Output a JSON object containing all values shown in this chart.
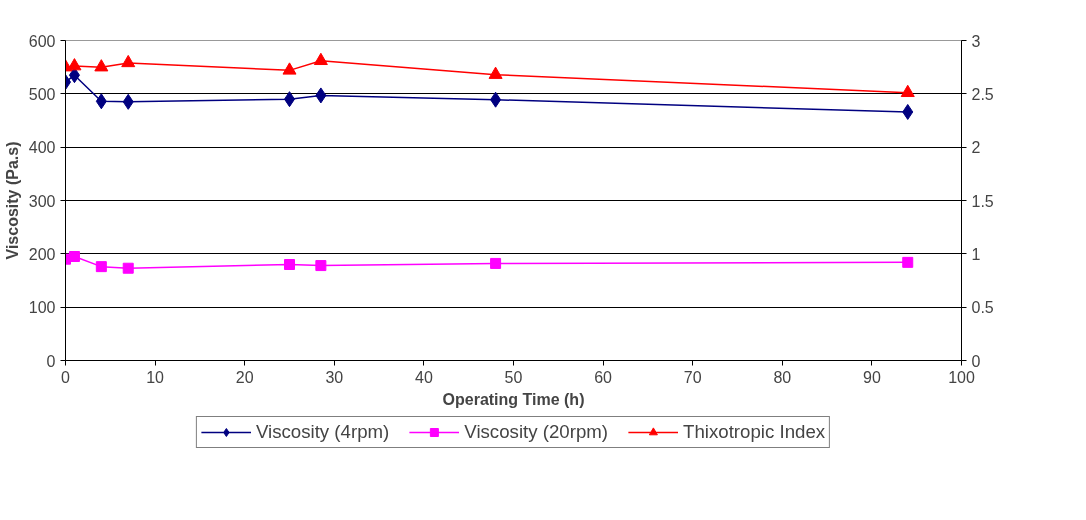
{
  "chart_data": {
    "type": "line",
    "xlabel": "Operating Time (h)",
    "ylabel": "Viscosity (Pa.s)",
    "x": [
      0,
      1,
      4,
      7,
      25,
      28.5,
      48,
      94
    ],
    "series": [
      {
        "name": "Viscosity (4rpm)",
        "color": "#000080",
        "marker": "diamond",
        "values": [
          522,
          535,
          486,
          485,
          490,
          497,
          489,
          466
        ]
      },
      {
        "name": "Viscosity (20rpm)",
        "color": "#ff00ff",
        "marker": "square",
        "values": [
          190,
          195,
          176,
          173,
          180,
          178,
          182,
          184
        ]
      },
      {
        "name": "Thixotropic Index",
        "color": "#ff0000",
        "marker": "triangle",
        "axis": "y2",
        "values": [
          2.75,
          2.76,
          2.75,
          2.79,
          2.72,
          2.81,
          2.68,
          2.51
        ]
      }
    ],
    "xlim": [
      0,
      100
    ],
    "xticks": [
      0,
      10,
      20,
      30,
      40,
      50,
      60,
      70,
      80,
      90,
      100
    ],
    "ylim": [
      0,
      600
    ],
    "yticks": [
      0,
      100,
      200,
      300,
      400,
      500,
      600
    ],
    "y2lim": [
      0,
      3
    ],
    "y2ticks": [
      0,
      0.5,
      1,
      1.5,
      2,
      2.5,
      3
    ],
    "grid": "y",
    "legend": "bottom",
    "line_style": "solid"
  }
}
